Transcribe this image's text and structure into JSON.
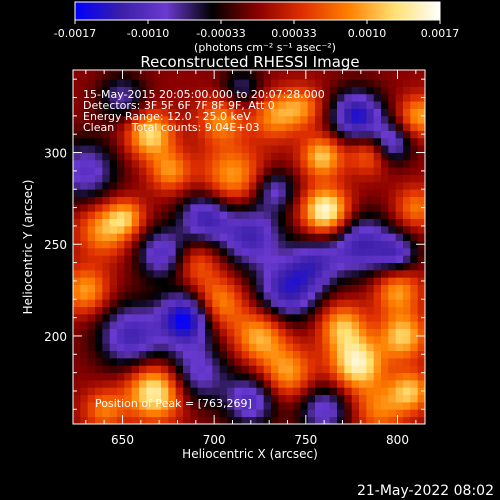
{
  "chart_data": {
    "type": "heatmap",
    "title": "Reconstructed RHESSI Image",
    "xlabel": "Heliocentric X (arcsec)",
    "ylabel": "Heliocentric Y (arcsec)",
    "xlim": [
      623,
      815
    ],
    "ylim": [
      152,
      345
    ],
    "x_ticks": [
      650,
      700,
      750,
      800
    ],
    "y_ticks": [
      200,
      250,
      300
    ],
    "grid": false,
    "colorbar": {
      "position": "top",
      "range": [
        -0.0017,
        0.0017
      ],
      "tick_labels": [
        "-0.0017",
        "-0.0010",
        "-0.00033",
        "0.00033",
        "0.0010",
        "0.0017"
      ],
      "unit_label": "(photons cm⁻² s⁻¹ asec⁻²)",
      "colors": [
        "#0000ff",
        "#3a1ea8",
        "#6a3ad0",
        "#000000",
        "#8a0000",
        "#e03000",
        "#ff8000",
        "#ffe070",
        "#ffffff"
      ]
    },
    "annotations": [
      "15-May-2015 20:05:00.000 to 20:07:28.000",
      "Detectors: 3F 5F 6F 7F 8F 9F, Att 0",
      "Energy Range: 12.0 - 25.0 keV",
      "Clean     Total counts: 9.04E+03"
    ],
    "peak_label": "Position of Peak = [763,269]",
    "peak": {
      "x": 763,
      "y": 269
    },
    "features": [
      {
        "x": 761,
        "y": 268,
        "value": 0.0017,
        "spread": 9
      },
      {
        "x": 759,
        "y": 298,
        "value": 0.0012,
        "spread": 8
      },
      {
        "x": 710,
        "y": 287,
        "value": 0.001,
        "spread": 12
      },
      {
        "x": 704,
        "y": 318,
        "value": 0.0009,
        "spread": 9
      },
      {
        "x": 733,
        "y": 320,
        "value": 0.0009,
        "spread": 9
      },
      {
        "x": 748,
        "y": 325,
        "value": 0.0008,
        "spread": 8
      },
      {
        "x": 665,
        "y": 310,
        "value": 0.0013,
        "spread": 9
      },
      {
        "x": 676,
        "y": 290,
        "value": 0.0009,
        "spread": 8
      },
      {
        "x": 640,
        "y": 258,
        "value": 0.001,
        "spread": 10
      },
      {
        "x": 652,
        "y": 265,
        "value": 0.0009,
        "spread": 7
      },
      {
        "x": 630,
        "y": 225,
        "value": 0.001,
        "spread": 9
      },
      {
        "x": 668,
        "y": 170,
        "value": 0.0016,
        "spread": 11
      },
      {
        "x": 640,
        "y": 160,
        "value": 0.0008,
        "spread": 8
      },
      {
        "x": 702,
        "y": 218,
        "value": 0.001,
        "spread": 10
      },
      {
        "x": 690,
        "y": 240,
        "value": 0.0007,
        "spread": 9
      },
      {
        "x": 725,
        "y": 200,
        "value": 0.0011,
        "spread": 10
      },
      {
        "x": 740,
        "y": 180,
        "value": 0.001,
        "spread": 10
      },
      {
        "x": 770,
        "y": 205,
        "value": 0.0011,
        "spread": 9
      },
      {
        "x": 778,
        "y": 185,
        "value": 0.0015,
        "spread": 10
      },
      {
        "x": 803,
        "y": 200,
        "value": 0.0012,
        "spread": 9
      },
      {
        "x": 800,
        "y": 225,
        "value": 0.001,
        "spread": 9
      },
      {
        "x": 810,
        "y": 270,
        "value": 0.0008,
        "spread": 8
      },
      {
        "x": 785,
        "y": 300,
        "value": 0.0009,
        "spread": 8
      },
      {
        "x": 812,
        "y": 320,
        "value": 0.001,
        "spread": 8
      },
      {
        "x": 790,
        "y": 160,
        "value": 0.0008,
        "spread": 10
      },
      {
        "x": 807,
        "y": 170,
        "value": 0.0011,
        "spread": 8
      },
      {
        "x": 630,
        "y": 290,
        "value": -0.001,
        "spread": 12
      },
      {
        "x": 655,
        "y": 200,
        "value": -0.0012,
        "spread": 13
      },
      {
        "x": 685,
        "y": 210,
        "value": -0.0017,
        "spread": 10
      },
      {
        "x": 672,
        "y": 245,
        "value": -0.0011,
        "spread": 10
      },
      {
        "x": 695,
        "y": 265,
        "value": -0.0012,
        "spread": 10
      },
      {
        "x": 690,
        "y": 180,
        "value": -0.001,
        "spread": 12
      },
      {
        "x": 720,
        "y": 255,
        "value": -0.0012,
        "spread": 12
      },
      {
        "x": 740,
        "y": 225,
        "value": -0.0013,
        "spread": 12
      },
      {
        "x": 755,
        "y": 240,
        "value": -0.0009,
        "spread": 10
      },
      {
        "x": 733,
        "y": 280,
        "value": -0.0009,
        "spread": 8
      },
      {
        "x": 780,
        "y": 250,
        "value": -0.0012,
        "spread": 12
      },
      {
        "x": 778,
        "y": 320,
        "value": -0.0015,
        "spread": 10
      },
      {
        "x": 796,
        "y": 305,
        "value": -0.0011,
        "spread": 8
      },
      {
        "x": 720,
        "y": 165,
        "value": -0.0011,
        "spread": 10
      },
      {
        "x": 760,
        "y": 160,
        "value": -0.001,
        "spread": 10
      },
      {
        "x": 800,
        "y": 245,
        "value": -0.0009,
        "spread": 8
      },
      {
        "x": 650,
        "y": 330,
        "value": -0.0008,
        "spread": 9
      },
      {
        "x": 715,
        "y": 335,
        "value": -0.0007,
        "spread": 8
      }
    ]
  },
  "footer": {
    "timestamp": "21-May-2022 08:02"
  }
}
